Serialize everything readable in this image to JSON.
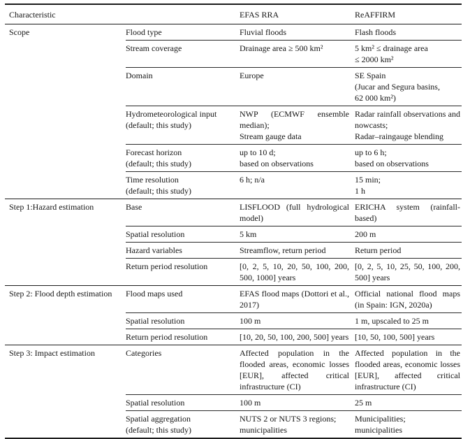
{
  "table": {
    "headers": [
      "Characteristic",
      "",
      "EFAS RRA",
      "ReAFFIRM"
    ],
    "groups": [
      {
        "name": "Scope",
        "rows": [
          {
            "characteristic": "Flood type",
            "efas": "Fluvial floods",
            "reaffirm": "Flash floods"
          },
          {
            "characteristic": "Stream coverage",
            "efas": "Drainage area ≥ 500 km²",
            "reaffirm": "5 km² ≤ drainage area\n≤ 2000 km²"
          },
          {
            "characteristic": "Domain",
            "efas": "Europe",
            "reaffirm": "SE Spain\n(Jucar and Segura basins,\n62 000 km²)"
          },
          {
            "characteristic": "Hydrometeorological input\n(default; this study)",
            "efas": "NWP (ECMWF ensemble median);\nStream gauge data",
            "reaffirm": "Radar rainfall observations and nowcasts;\nRadar–raingauge blending"
          },
          {
            "characteristic": "Forecast horizon\n(default; this study)",
            "efas": "up to 10 d;\nbased on observations",
            "reaffirm": "up to 6 h;\nbased on observations"
          },
          {
            "characteristic": "Time resolution\n(default; this study)",
            "efas": "6 h; n/a",
            "reaffirm": "15 min;\n1 h"
          }
        ]
      },
      {
        "name": "Step 1:Hazard estimation",
        "rows": [
          {
            "characteristic": "Base",
            "efas": "LISFLOOD (full hydrological model)",
            "reaffirm": "ERICHA system (rainfall-based)"
          },
          {
            "characteristic": "Spatial resolution",
            "efas": "5 km",
            "reaffirm": "200 m"
          },
          {
            "characteristic": "Hazard variables",
            "efas": "Streamflow, return period",
            "reaffirm": "Return period"
          },
          {
            "characteristic": "Return period resolution",
            "efas": "[0, 2, 5, 10, 20, 50, 100, 200, 500, 1000] years",
            "reaffirm": "[0, 2, 5, 10, 25, 50, 100, 200, 500] years"
          }
        ]
      },
      {
        "name": "Step 2: Flood depth estimation",
        "rows": [
          {
            "characteristic": "Flood maps used",
            "efas": "EFAS flood maps (Dottori et al., 2017)",
            "reaffirm": "Official national flood maps (in Spain: IGN, 2020a)"
          },
          {
            "characteristic": "Spatial resolution",
            "efas": "100 m",
            "reaffirm": "1 m, upscaled to 25 m"
          },
          {
            "characteristic": "Return period resolution",
            "efas": "[10, 20, 50, 100, 200, 500] years",
            "reaffirm": "[10, 50, 100, 500] years"
          }
        ]
      },
      {
        "name": "Step 3: Impact estimation",
        "rows": [
          {
            "characteristic": "Categories",
            "efas": "Affected population in the flooded areas, economic losses [EUR], affected critical infrastructure (CI)",
            "reaffirm": "Affected population in the flooded areas, economic losses [EUR], affected critical infrastructure (CI)"
          },
          {
            "characteristic": "Spatial resolution",
            "efas": "100 m",
            "reaffirm": "25 m"
          },
          {
            "characteristic": "Spatial aggregation\n(default; this study)",
            "efas": "NUTS 2 or NUTS 3 regions;\nmunicipalities",
            "reaffirm": "Municipalities;\nmunicipalities"
          }
        ]
      }
    ]
  }
}
